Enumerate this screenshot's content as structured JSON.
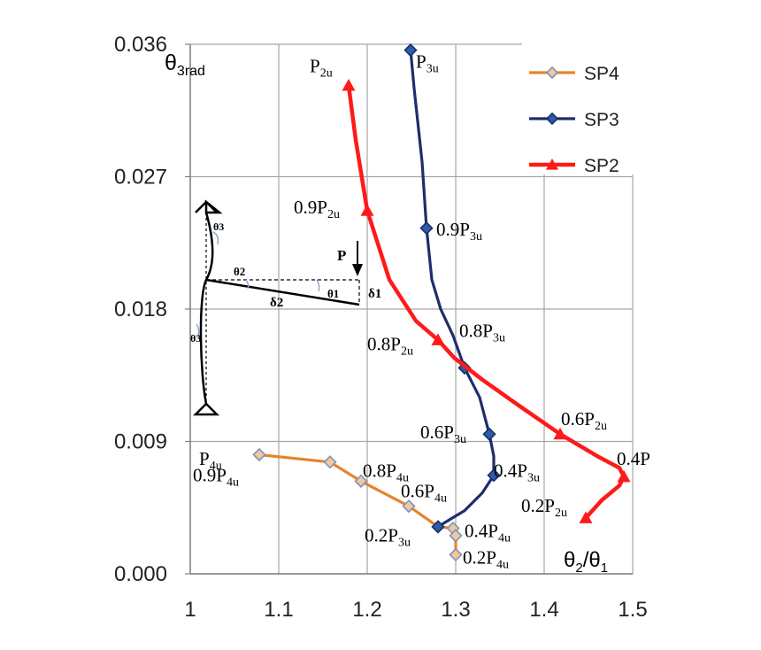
{
  "chart_data": {
    "type": "line",
    "xlabel": "θ2/θ1",
    "ylabel": "θ3rad",
    "xlim": [
      1,
      1.5
    ],
    "ylim": [
      0,
      0.036
    ],
    "x_ticks": [
      "1",
      "1.1",
      "1.2",
      "1.3",
      "1.4",
      "1.5"
    ],
    "y_ticks": [
      "0.000",
      "0.009",
      "0.018",
      "0.027",
      "0.036"
    ],
    "grid": true,
    "legend": "top-right",
    "series": [
      {
        "name": "SP4",
        "color": "#E8832A",
        "marker": "diamond",
        "marker_fill": "#F2C6A0",
        "marker_edge": "#7F93B8",
        "points": [
          [
            1.078,
            0.0081
          ],
          [
            1.158,
            0.0076
          ],
          [
            1.193,
            0.0063
          ],
          [
            1.247,
            0.0046
          ],
          [
            1.28,
            0.0032
          ],
          [
            1.297,
            0.0031
          ],
          [
            1.3,
            0.0026
          ],
          [
            1.3,
            0.0013
          ]
        ]
      },
      {
        "name": "SP3",
        "color": "#1F2D6B",
        "marker": "diamond",
        "marker_fill": "#2E5BA8",
        "marker_edge": "#1A2F6B",
        "points": [
          [
            1.249,
            0.0356
          ],
          [
            1.253,
            0.033
          ],
          [
            1.262,
            0.028
          ],
          [
            1.267,
            0.0235
          ],
          [
            1.273,
            0.02
          ],
          [
            1.283,
            0.018
          ],
          [
            1.297,
            0.0162
          ],
          [
            1.31,
            0.014
          ],
          [
            1.327,
            0.012
          ],
          [
            1.338,
            0.0095
          ],
          [
            1.343,
            0.008
          ],
          [
            1.343,
            0.0067
          ],
          [
            1.33,
            0.0055
          ],
          [
            1.31,
            0.0043
          ],
          [
            1.28,
            0.0032
          ]
        ],
        "markers_at": [
          0,
          3,
          7,
          9,
          11,
          14
        ]
      },
      {
        "name": "SP2",
        "color": "#FF1A1A",
        "marker": "triangle",
        "points": [
          [
            1.179,
            0.0332
          ],
          [
            1.187,
            0.0295
          ],
          [
            1.197,
            0.0258
          ],
          [
            1.2,
            0.0247
          ],
          [
            1.225,
            0.02
          ],
          [
            1.255,
            0.0172
          ],
          [
            1.28,
            0.0159
          ],
          [
            1.298,
            0.0147
          ],
          [
            1.33,
            0.0132
          ],
          [
            1.37,
            0.0115
          ],
          [
            1.418,
            0.0095
          ],
          [
            1.46,
            0.008
          ],
          [
            1.485,
            0.0072
          ],
          [
            1.49,
            0.0066
          ],
          [
            1.485,
            0.006
          ],
          [
            1.465,
            0.005
          ],
          [
            1.447,
            0.0038
          ]
        ],
        "markers_at": [
          0,
          3,
          6,
          10,
          13,
          16
        ]
      }
    ],
    "annotations": [
      {
        "text": "P",
        "sub": "2u",
        "x": 1.135,
        "y": 0.0341
      },
      {
        "text": "P",
        "sub": "3u",
        "x": 1.255,
        "y": 0.0344
      },
      {
        "text": "0.9P",
        "sub": "2u",
        "x": 1.117,
        "y": 0.0245
      },
      {
        "text": "0.9P",
        "sub": "3u",
        "x": 1.278,
        "y": 0.023
      },
      {
        "text": "0.8P",
        "sub": "3u",
        "x": 1.304,
        "y": 0.0161
      },
      {
        "text": "0.8P",
        "sub": "2u",
        "x": 1.2,
        "y": 0.0152
      },
      {
        "text": "0.6P",
        "sub": "3u",
        "x": 1.26,
        "y": 0.0092
      },
      {
        "text": "0.6P",
        "sub": "2u",
        "x": 1.419,
        "y": 0.0101
      },
      {
        "text": "0.4P",
        "sub": "",
        "x": 1.482,
        "y": 0.0074
      },
      {
        "text": "0.4P",
        "sub": "3u",
        "x": 1.343,
        "y": 0.0066
      },
      {
        "text": "0.2P",
        "sub": "2u",
        "x": 1.374,
        "y": 0.0042
      },
      {
        "text": "P",
        "sub": "4u",
        "x": 1.01,
        "y": 0.0074
      },
      {
        "text": "0.9P",
        "sub": "4u",
        "x": 1.003,
        "y": 0.0063
      },
      {
        "text": "0.8P",
        "sub": "4u",
        "x": 1.195,
        "y": 0.0066
      },
      {
        "text": "0.6P",
        "sub": "4u",
        "x": 1.238,
        "y": 0.0052
      },
      {
        "text": "0.2P",
        "sub": "3u",
        "x": 1.197,
        "y": 0.0022
      },
      {
        "text": "0.4P",
        "sub": "4u",
        "x": 1.31,
        "y": 0.0025
      },
      {
        "text": "0.2P",
        "sub": "4u",
        "x": 1.308,
        "y": 0.0007
      }
    ],
    "inset_labels": {
      "theta3": "θ3",
      "theta2": "θ2",
      "theta1": "θ1",
      "load": "P",
      "delta2": "δ2",
      "delta1": "δ1"
    }
  }
}
